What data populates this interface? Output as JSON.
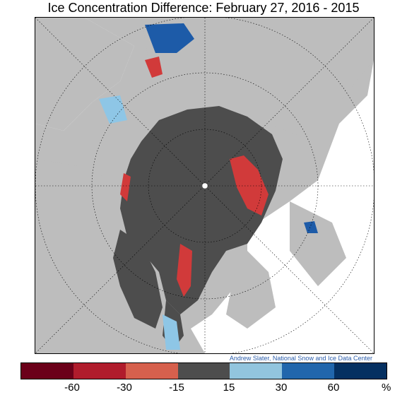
{
  "title": "Ice Concentration Difference: February 27, 2016 - 2015",
  "credit": "Andrew Slater, National Snow and Ice Data Center",
  "colors": {
    "land": "#bdbdbd",
    "open_water": "#ffffff",
    "no_change_ice": "#4d4d4d",
    "loss_strong": "#d13a3a",
    "gain_strong": "#1d5ba8",
    "gain_light": "#8ec6e6",
    "pole": "#ffffff"
  },
  "map": {
    "projection": "polar-stereographic",
    "grid": true
  },
  "legend": {
    "colors": [
      "#6b0019",
      "#b01c2c",
      "#d6604d",
      "#4d4d4d",
      "#92c5de",
      "#2166ac",
      "#053061"
    ],
    "tick_labels": [
      "-60",
      "-30",
      "-15",
      "15",
      "30",
      "60"
    ],
    "unit": "%"
  }
}
